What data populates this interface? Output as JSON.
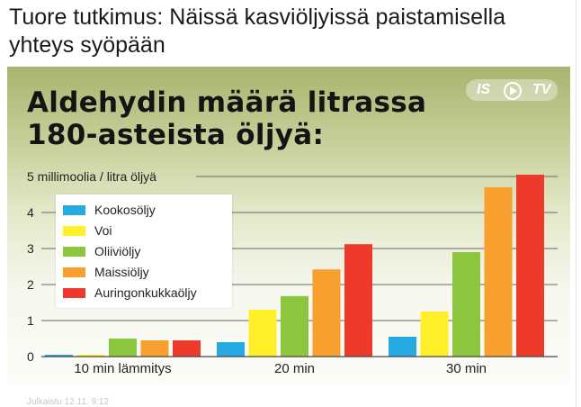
{
  "article": {
    "headline": "Tuore tutkimus: Näissä kasviöljyissä paistamisella yhteys syöpään"
  },
  "graphic": {
    "watermark": {
      "left": "IS",
      "right": "TV"
    }
  },
  "chart_data": {
    "type": "bar",
    "title": "Aldehydin määrä litrassa 180-asteista öljyä:",
    "ylabel": "5 millimoolia / litra öljyä",
    "categories": [
      "10 min lämmitys",
      "20 min",
      "30 min"
    ],
    "y_ticks": [
      "0",
      "1",
      "2",
      "3",
      "4"
    ],
    "ylim": [
      0,
      5
    ],
    "grid": "horizontal",
    "legend_position": "upper-left",
    "series": [
      {
        "name": "Kookosöljy",
        "color": "#27a9e1",
        "values": [
          0.05,
          0.4,
          0.55
        ]
      },
      {
        "name": "Voi",
        "color": "#fff02a",
        "values": [
          0.05,
          1.3,
          1.25
        ]
      },
      {
        "name": "Oliiviöljy",
        "color": "#8cc63f",
        "values": [
          0.5,
          1.68,
          2.9
        ]
      },
      {
        "name": "Maissiöljy",
        "color": "#f7a030",
        "values": [
          0.45,
          2.42,
          4.7
        ]
      },
      {
        "name": "Auringonkukkaöljy",
        "color": "#ee3a2b",
        "values": [
          0.45,
          3.12,
          5.05
        ]
      }
    ]
  },
  "footer": {
    "caption": "Julkaistu 12.11. 9:12"
  }
}
